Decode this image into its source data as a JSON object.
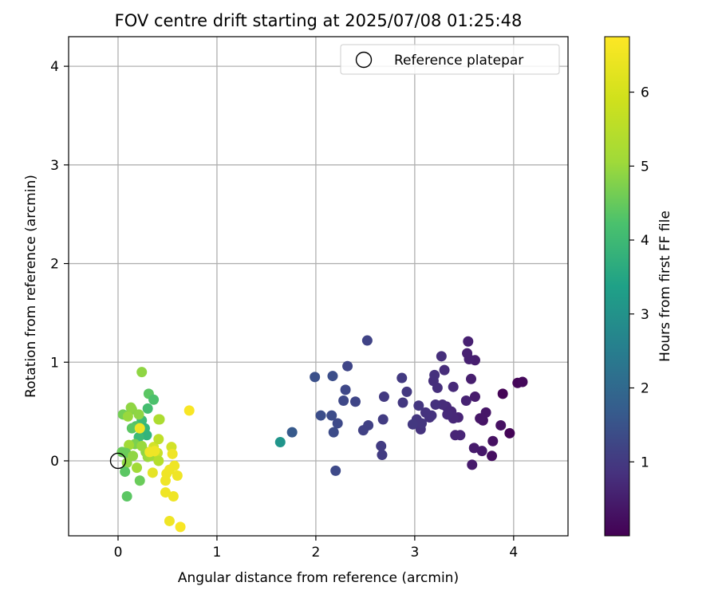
{
  "chart_data": {
    "type": "scatter",
    "title": "FOV centre drift starting at 2025/07/08 01:25:48",
    "xlabel": "Angular distance from reference (arcmin)",
    "ylabel": "Rotation from reference (arcmin)",
    "xlim": [
      -0.5,
      4.55
    ],
    "ylim": [
      -0.76,
      4.3
    ],
    "xticks": [
      0,
      1,
      2,
      3,
      4
    ],
    "yticks": [
      0,
      1,
      2,
      3,
      4
    ],
    "grid": true,
    "legend": {
      "placement": "top-right",
      "entries": [
        "Reference platepar"
      ]
    },
    "reference_point": {
      "x": 0,
      "y": 0
    },
    "colorbar": {
      "label": "Hours from first FF file",
      "colormap": "viridis",
      "range": [
        0.0,
        6.75
      ],
      "ticks": [
        1,
        2,
        3,
        4,
        5,
        6
      ]
    },
    "points": [
      {
        "x": 3.89,
        "y": 0.68,
        "c": 0.05
      },
      {
        "x": 3.96,
        "y": 0.28,
        "c": 0.05
      },
      {
        "x": 4.04,
        "y": 0.79,
        "c": 0.1
      },
      {
        "x": 4.09,
        "y": 0.8,
        "c": 0.15
      },
      {
        "x": 3.78,
        "y": 0.05,
        "c": 0.25
      },
      {
        "x": 3.79,
        "y": 0.2,
        "c": 0.3
      },
      {
        "x": 3.87,
        "y": 0.36,
        "c": 0.3
      },
      {
        "x": 3.69,
        "y": 0.41,
        "c": 0.35
      },
      {
        "x": 3.72,
        "y": 0.49,
        "c": 0.4
      },
      {
        "x": 3.66,
        "y": 0.43,
        "c": 0.4
      },
      {
        "x": 3.68,
        "y": 0.1,
        "c": 0.45
      },
      {
        "x": 3.6,
        "y": 0.13,
        "c": 0.5
      },
      {
        "x": 3.58,
        "y": -0.04,
        "c": 0.5
      },
      {
        "x": 3.61,
        "y": 0.65,
        "c": 0.5
      },
      {
        "x": 3.57,
        "y": 0.83,
        "c": 0.55
      },
      {
        "x": 3.61,
        "y": 1.02,
        "c": 0.55
      },
      {
        "x": 3.55,
        "y": 1.03,
        "c": 0.6
      },
      {
        "x": 3.53,
        "y": 1.09,
        "c": 0.6
      },
      {
        "x": 3.54,
        "y": 1.21,
        "c": 0.6
      },
      {
        "x": 3.52,
        "y": 0.61,
        "c": 0.65
      },
      {
        "x": 3.46,
        "y": 0.26,
        "c": 0.7
      },
      {
        "x": 3.41,
        "y": 0.26,
        "c": 0.7
      },
      {
        "x": 3.44,
        "y": 0.44,
        "c": 0.7
      },
      {
        "x": 3.39,
        "y": 0.43,
        "c": 0.75
      },
      {
        "x": 3.37,
        "y": 0.5,
        "c": 0.75
      },
      {
        "x": 3.39,
        "y": 0.75,
        "c": 0.8
      },
      {
        "x": 3.33,
        "y": 0.47,
        "c": 0.8
      },
      {
        "x": 3.32,
        "y": 0.55,
        "c": 0.8
      },
      {
        "x": 3.28,
        "y": 0.57,
        "c": 0.85
      },
      {
        "x": 3.3,
        "y": 0.92,
        "c": 0.85
      },
      {
        "x": 3.27,
        "y": 1.06,
        "c": 0.9
      },
      {
        "x": 3.23,
        "y": 0.74,
        "c": 0.9
      },
      {
        "x": 3.19,
        "y": 0.81,
        "c": 0.9
      },
      {
        "x": 3.2,
        "y": 0.87,
        "c": 0.95
      },
      {
        "x": 3.21,
        "y": 0.57,
        "c": 0.95
      },
      {
        "x": 3.15,
        "y": 0.44,
        "c": 0.95
      },
      {
        "x": 3.17,
        "y": 0.46,
        "c": 1.0
      },
      {
        "x": 3.11,
        "y": 0.49,
        "c": 1.0
      },
      {
        "x": 3.06,
        "y": 0.32,
        "c": 1.0
      },
      {
        "x": 3.07,
        "y": 0.38,
        "c": 1.05
      },
      {
        "x": 3.02,
        "y": 0.42,
        "c": 1.05
      },
      {
        "x": 3.04,
        "y": 0.56,
        "c": 1.05
      },
      {
        "x": 2.98,
        "y": 0.37,
        "c": 1.1
      },
      {
        "x": 2.92,
        "y": 0.7,
        "c": 1.1
      },
      {
        "x": 2.88,
        "y": 0.59,
        "c": 1.1
      },
      {
        "x": 2.87,
        "y": 0.84,
        "c": 1.15
      },
      {
        "x": 2.69,
        "y": 0.65,
        "c": 1.15
      },
      {
        "x": 2.68,
        "y": 0.42,
        "c": 1.2
      },
      {
        "x": 2.66,
        "y": 0.15,
        "c": 1.2
      },
      {
        "x": 2.67,
        "y": 0.06,
        "c": 1.2
      },
      {
        "x": 2.53,
        "y": 0.36,
        "c": 1.3
      },
      {
        "x": 2.48,
        "y": 0.31,
        "c": 1.3
      },
      {
        "x": 2.52,
        "y": 1.22,
        "c": 1.35
      },
      {
        "x": 2.4,
        "y": 0.6,
        "c": 1.4
      },
      {
        "x": 2.32,
        "y": 0.96,
        "c": 1.4
      },
      {
        "x": 2.3,
        "y": 0.72,
        "c": 1.45
      },
      {
        "x": 2.28,
        "y": 0.61,
        "c": 1.45
      },
      {
        "x": 2.22,
        "y": 0.38,
        "c": 1.5
      },
      {
        "x": 2.2,
        "y": -0.1,
        "c": 1.5
      },
      {
        "x": 2.18,
        "y": 0.29,
        "c": 1.55
      },
      {
        "x": 2.16,
        "y": 0.46,
        "c": 1.55
      },
      {
        "x": 2.17,
        "y": 0.86,
        "c": 1.6
      },
      {
        "x": 2.05,
        "y": 0.46,
        "c": 1.6
      },
      {
        "x": 1.99,
        "y": 0.85,
        "c": 1.65
      },
      {
        "x": 1.76,
        "y": 0.29,
        "c": 1.9
      },
      {
        "x": 1.64,
        "y": 0.19,
        "c": 3.5
      },
      {
        "x": 0.24,
        "y": 0.9,
        "c": 5.6
      },
      {
        "x": 0.31,
        "y": 0.68,
        "c": 5.0
      },
      {
        "x": 0.36,
        "y": 0.62,
        "c": 4.8
      },
      {
        "x": 0.3,
        "y": 0.53,
        "c": 4.7
      },
      {
        "x": 0.24,
        "y": 0.41,
        "c": 4.6
      },
      {
        "x": 0.27,
        "y": 0.33,
        "c": 4.5
      },
      {
        "x": 0.29,
        "y": 0.26,
        "c": 4.4
      },
      {
        "x": 0.21,
        "y": 0.24,
        "c": 4.6
      },
      {
        "x": 0.18,
        "y": 0.35,
        "c": 4.9
      },
      {
        "x": 0.14,
        "y": 0.33,
        "c": 5.0
      },
      {
        "x": 0.14,
        "y": 0.52,
        "c": 5.5
      },
      {
        "x": 0.13,
        "y": 0.54,
        "c": 5.6
      },
      {
        "x": 0.09,
        "y": 0.46,
        "c": 5.5
      },
      {
        "x": 0.05,
        "y": 0.47,
        "c": 5.3
      },
      {
        "x": 0.1,
        "y": 0.45,
        "c": 5.7
      },
      {
        "x": 0.21,
        "y": 0.47,
        "c": 5.6
      },
      {
        "x": 0.17,
        "y": 0.17,
        "c": 5.4
      },
      {
        "x": 0.11,
        "y": 0.16,
        "c": 5.8
      },
      {
        "x": 0.08,
        "y": 0.08,
        "c": 5.2
      },
      {
        "x": 0.04,
        "y": 0.09,
        "c": 5.2
      },
      {
        "x": 0.15,
        "y": 0.05,
        "c": 5.6
      },
      {
        "x": 0.09,
        "y": -0.02,
        "c": 5.6
      },
      {
        "x": 0.07,
        "y": -0.11,
        "c": 5.0
      },
      {
        "x": 0.19,
        "y": -0.07,
        "c": 5.8
      },
      {
        "x": 0.22,
        "y": -0.2,
        "c": 5.2
      },
      {
        "x": 0.09,
        "y": -0.36,
        "c": 5.0
      },
      {
        "x": 0.28,
        "y": 0.09,
        "c": 5.6
      },
      {
        "x": 0.24,
        "y": 0.15,
        "c": 5.7
      },
      {
        "x": 0.22,
        "y": 0.33,
        "c": 6.6
      },
      {
        "x": 0.3,
        "y": 0.04,
        "c": 5.7
      },
      {
        "x": 0.36,
        "y": 0.14,
        "c": 6.3
      },
      {
        "x": 0.33,
        "y": 0.05,
        "c": 5.8
      },
      {
        "x": 0.41,
        "y": 0.42,
        "c": 6.0
      },
      {
        "x": 0.42,
        "y": 0.42,
        "c": 5.9
      },
      {
        "x": 0.41,
        "y": 0.22,
        "c": 6.1
      },
      {
        "x": 0.4,
        "y": 0.08,
        "c": 6.2
      },
      {
        "x": 0.37,
        "y": 0.1,
        "c": 6.6
      },
      {
        "x": 0.32,
        "y": 0.09,
        "c": 6.6
      },
      {
        "x": 0.41,
        "y": 0.0,
        "c": 6.0
      },
      {
        "x": 0.35,
        "y": -0.12,
        "c": 6.5
      },
      {
        "x": 0.49,
        "y": -0.13,
        "c": 6.6
      },
      {
        "x": 0.48,
        "y": -0.2,
        "c": 6.6
      },
      {
        "x": 0.52,
        "y": -0.09,
        "c": 6.6
      },
      {
        "x": 0.57,
        "y": -0.05,
        "c": 6.6
      },
      {
        "x": 0.6,
        "y": -0.15,
        "c": 6.6
      },
      {
        "x": 0.54,
        "y": 0.14,
        "c": 6.3
      },
      {
        "x": 0.55,
        "y": 0.07,
        "c": 6.6
      },
      {
        "x": 0.48,
        "y": -0.32,
        "c": 6.6
      },
      {
        "x": 0.56,
        "y": -0.36,
        "c": 6.6
      },
      {
        "x": 0.52,
        "y": -0.61,
        "c": 6.6
      },
      {
        "x": 0.63,
        "y": -0.67,
        "c": 6.7
      },
      {
        "x": 0.72,
        "y": 0.51,
        "c": 6.7
      }
    ]
  }
}
